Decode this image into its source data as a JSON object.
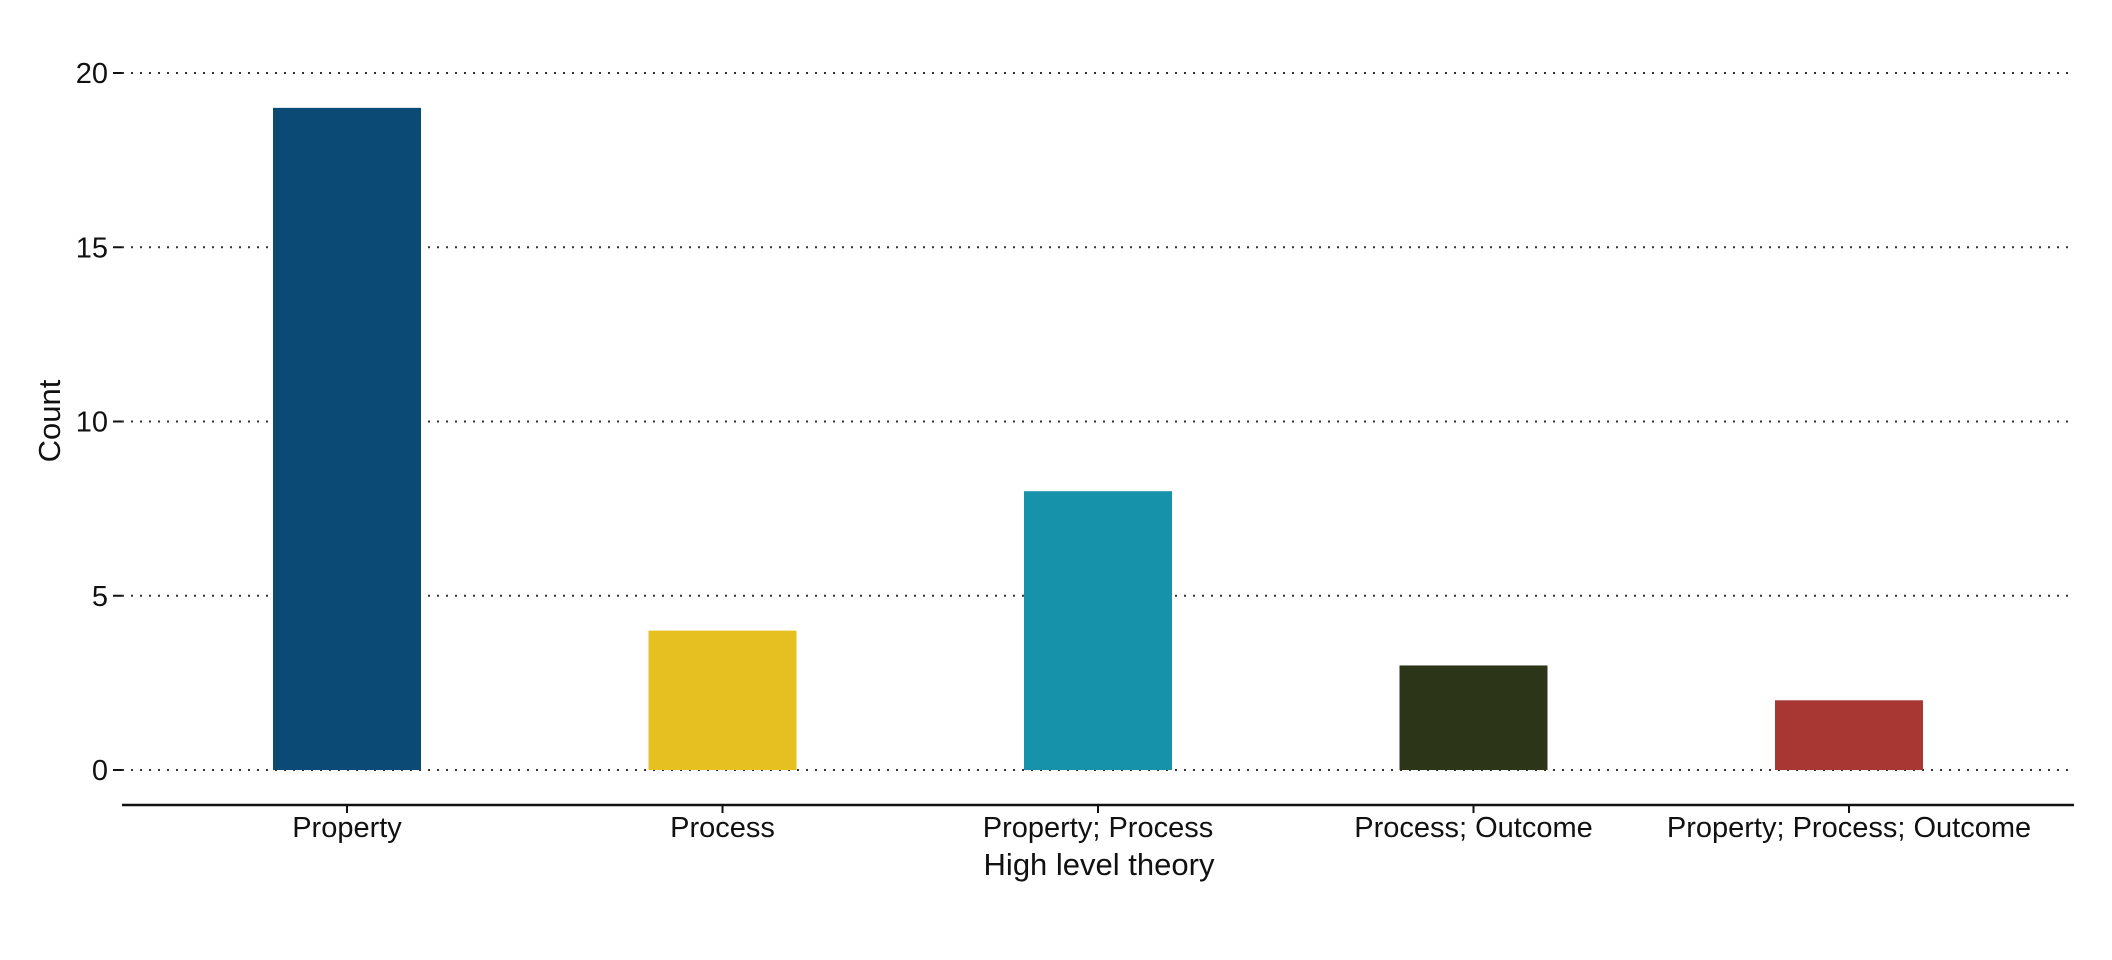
{
  "chart_data": {
    "type": "bar",
    "categories": [
      "Property",
      "Process",
      "Property; Process",
      "Process; Outcome",
      "Property; Process; Outcome"
    ],
    "values": [
      19,
      4,
      8,
      3,
      2
    ],
    "colors": [
      "#0b4a74",
      "#e6c020",
      "#1693aa",
      "#2d3518",
      "#a83632"
    ],
    "xlabel": "High level theory",
    "ylabel": "Count",
    "ylim": [
      0,
      20
    ],
    "yticks": [
      0,
      5,
      10,
      15,
      20
    ],
    "grid": "horizontal dotted"
  }
}
